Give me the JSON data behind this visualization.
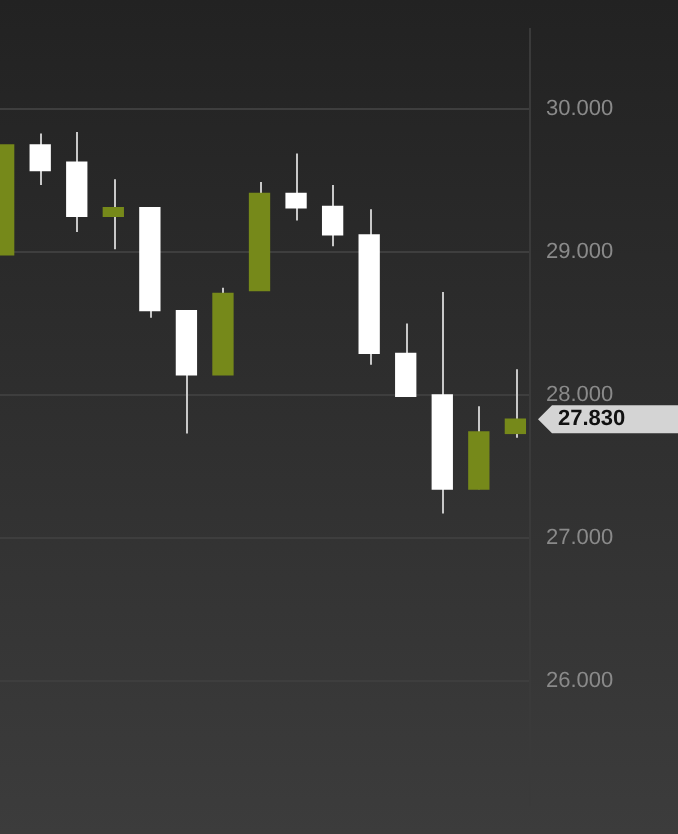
{
  "chart_data": {
    "type": "candlestick",
    "categories": [
      null,
      null,
      null,
      null,
      null,
      null,
      null,
      null,
      null,
      null,
      null,
      null,
      null,
      null,
      null
    ],
    "ohlc": [
      [
        28.98,
        29.75,
        28.98,
        29.75
      ],
      [
        29.75,
        29.83,
        29.47,
        29.57
      ],
      [
        29.63,
        29.84,
        29.14,
        29.25
      ],
      [
        29.25,
        29.51,
        29.02,
        29.31
      ],
      [
        29.31,
        29.31,
        28.54,
        28.59
      ],
      [
        28.59,
        28.59,
        27.73,
        28.14
      ],
      [
        28.14,
        28.75,
        28.14,
        28.71
      ],
      [
        28.73,
        29.49,
        28.73,
        29.41
      ],
      [
        29.41,
        29.69,
        29.22,
        29.31
      ],
      [
        29.32,
        29.47,
        29.04,
        29.12
      ],
      [
        29.12,
        29.3,
        28.21,
        28.29
      ],
      [
        28.29,
        28.5,
        27.99,
        27.99
      ],
      [
        28.0,
        28.72,
        27.17,
        27.34
      ],
      [
        27.34,
        27.92,
        27.34,
        27.74
      ],
      [
        27.73,
        28.18,
        27.7,
        27.83
      ]
    ],
    "colors": [
      "#76891a",
      "#ffffff",
      "#ffffff",
      "#76891a",
      "#ffffff",
      "#ffffff",
      "#76891a",
      "#76891a",
      "#ffffff",
      "#ffffff",
      "#ffffff",
      "#ffffff",
      "#ffffff",
      "#76891a",
      "#76891a"
    ],
    "ylim": [
      25.13,
      30.56
    ],
    "yticks": [
      {
        "value": 26,
        "label": "26.000"
      },
      {
        "value": 27,
        "label": "27.000"
      },
      {
        "value": 28,
        "label": "28.000"
      },
      {
        "value": 29,
        "label": "29.000"
      },
      {
        "value": 30,
        "label": "30.000"
      }
    ],
    "grid": "y",
    "tick_labels": "y",
    "legend": false,
    "annotations": [
      "27.830"
    ]
  }
}
